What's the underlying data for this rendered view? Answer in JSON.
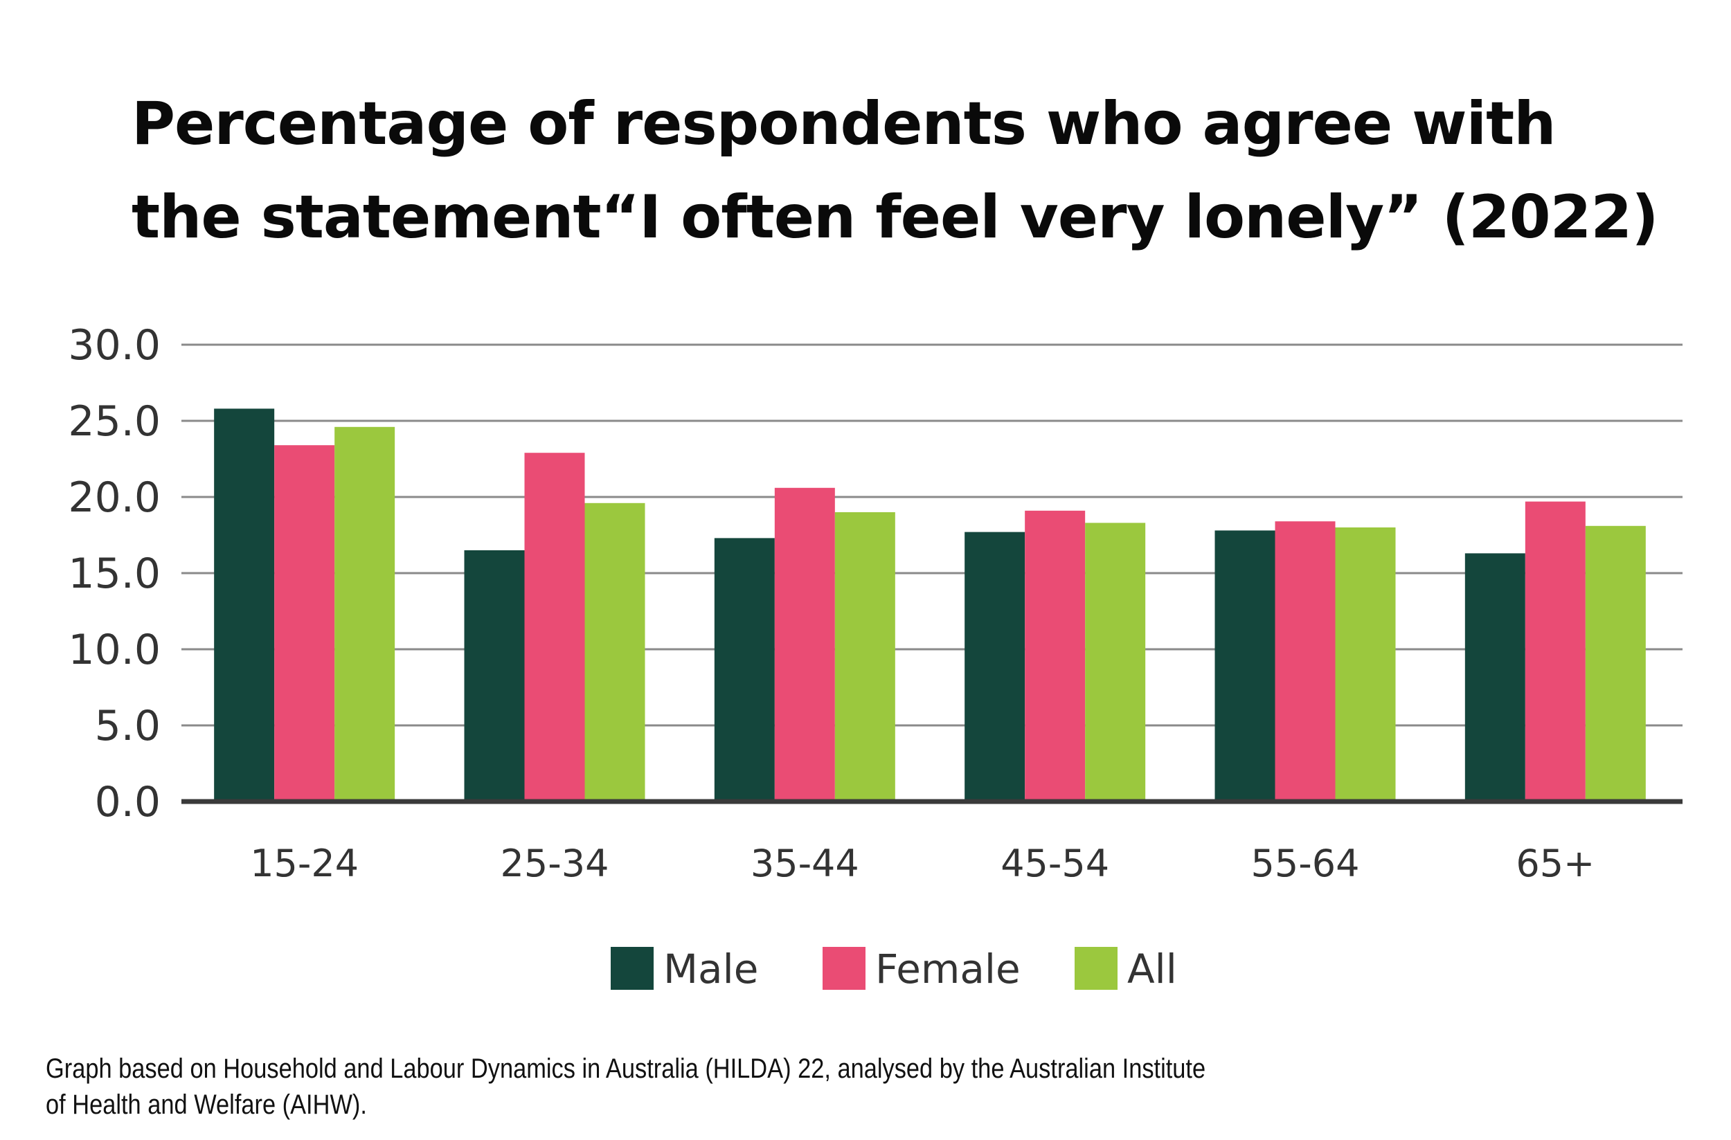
{
  "title_lines": [
    "Percentage of respondents who agree with",
    "the statement“I often feel very lonely” (2022)"
  ],
  "source_lines": [
    "Graph based on Household and Labour Dynamics in Australia (HILDA) 22, analysed by the Australian Institute",
    "of Health and Welfare (AIHW)."
  ],
  "chart_data": {
    "type": "bar",
    "title": "Percentage of respondents who agree with the statement“I often feel very lonely” (2022)",
    "xlabel": "",
    "ylabel": "",
    "categories": [
      "15-24",
      "25-34",
      "35-44",
      "45-54",
      "55-64",
      "65+"
    ],
    "series": [
      {
        "name": "Male",
        "color": "#14463c",
        "values": [
          25.8,
          16.5,
          17.3,
          17.7,
          17.8,
          16.3
        ]
      },
      {
        "name": "Female",
        "color": "#ea4c74",
        "values": [
          23.4,
          22.9,
          20.6,
          19.1,
          18.4,
          19.7
        ]
      },
      {
        "name": "All",
        "color": "#9bc83e",
        "values": [
          24.6,
          19.6,
          19.0,
          18.3,
          18.0,
          18.1
        ]
      }
    ],
    "ylim": [
      0,
      30
    ],
    "yticks": [
      "0.0",
      "5.0",
      "10.0",
      "15.0",
      "20.0",
      "25.0",
      "30.0"
    ],
    "grid": true,
    "legend_position": "bottom-center"
  }
}
